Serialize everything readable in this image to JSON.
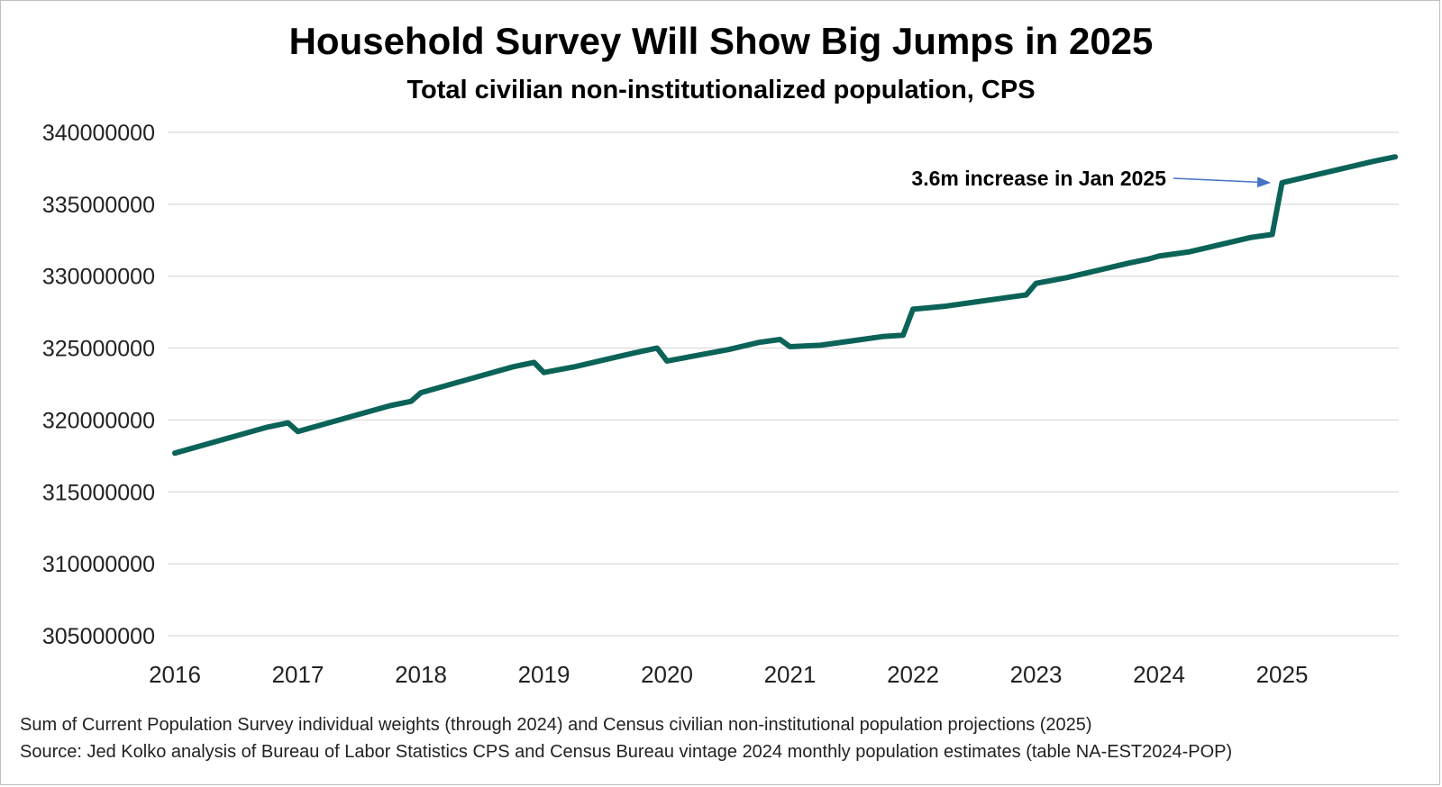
{
  "chart_data": {
    "type": "line",
    "title": "Household Survey Will Show Big Jumps in 2025",
    "subtitle": "Total civilian non-institutionalized population, CPS",
    "xlabel": "",
    "ylabel": "",
    "ylim": [
      305000000,
      340000000
    ],
    "y_ticks": [
      "340000000",
      "335000000",
      "330000000",
      "325000000",
      "320000000",
      "315000000",
      "310000000",
      "305000000"
    ],
    "x_ticks": [
      "2016",
      "2017",
      "2018",
      "2019",
      "2020",
      "2021",
      "2022",
      "2023",
      "2024",
      "2025"
    ],
    "grid": true,
    "legend": "none",
    "line_color": "#0b6358",
    "series": [
      {
        "points": [
          [
            2016.0,
            317700000
          ],
          [
            2016.25,
            318300000
          ],
          [
            2016.5,
            318900000
          ],
          [
            2016.75,
            319500000
          ],
          [
            2016.92,
            319800000
          ],
          [
            2017.0,
            319200000
          ],
          [
            2017.25,
            319800000
          ],
          [
            2017.5,
            320400000
          ],
          [
            2017.75,
            321000000
          ],
          [
            2017.92,
            321300000
          ],
          [
            2018.0,
            321900000
          ],
          [
            2018.25,
            322500000
          ],
          [
            2018.5,
            323100000
          ],
          [
            2018.75,
            323700000
          ],
          [
            2018.92,
            324000000
          ],
          [
            2019.0,
            323300000
          ],
          [
            2019.25,
            323700000
          ],
          [
            2019.5,
            324200000
          ],
          [
            2019.75,
            324700000
          ],
          [
            2019.92,
            325000000
          ],
          [
            2020.0,
            324100000
          ],
          [
            2020.25,
            324500000
          ],
          [
            2020.5,
            324900000
          ],
          [
            2020.75,
            325400000
          ],
          [
            2020.92,
            325600000
          ],
          [
            2021.0,
            325100000
          ],
          [
            2021.25,
            325200000
          ],
          [
            2021.5,
            325500000
          ],
          [
            2021.75,
            325800000
          ],
          [
            2021.92,
            325900000
          ],
          [
            2022.0,
            327700000
          ],
          [
            2022.25,
            327900000
          ],
          [
            2022.5,
            328200000
          ],
          [
            2022.75,
            328500000
          ],
          [
            2022.92,
            328700000
          ],
          [
            2023.0,
            329500000
          ],
          [
            2023.25,
            329900000
          ],
          [
            2023.5,
            330400000
          ],
          [
            2023.75,
            330900000
          ],
          [
            2023.92,
            331200000
          ],
          [
            2024.0,
            331400000
          ],
          [
            2024.25,
            331700000
          ],
          [
            2024.5,
            332200000
          ],
          [
            2024.75,
            332700000
          ],
          [
            2024.92,
            332900000
          ],
          [
            2025.0,
            336500000
          ],
          [
            2025.25,
            337000000
          ],
          [
            2025.5,
            337500000
          ],
          [
            2025.75,
            338000000
          ],
          [
            2025.92,
            338300000
          ]
        ]
      }
    ],
    "annotation": {
      "text": "3.6m increase in Jan 2025",
      "x": 2025.0,
      "y": 336500000
    }
  },
  "notes": {
    "line1": "Sum of Current Population Survey individual weights (through 2024) and Census civilian non-institutional population projections (2025)",
    "line2": "Source: Jed Kolko analysis of Bureau of Labor Statistics CPS and Census Bureau vintage 2024 monthly population estimates (table NA-EST2024-POP)"
  }
}
